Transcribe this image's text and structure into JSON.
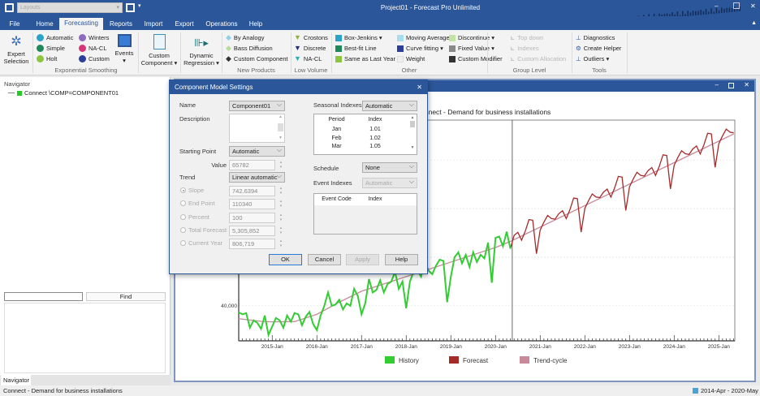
{
  "app": {
    "title": "Project01 - Forecast Pro Unlimited",
    "layouts_placeholder": "Layouts"
  },
  "tabs": [
    "File",
    "Home",
    "Forecasting",
    "Reports",
    "Import",
    "Export",
    "Operations",
    "Help"
  ],
  "active_tab": "Forecasting",
  "ribbon": {
    "expert": {
      "label1": "Expert",
      "label2": "Selection"
    },
    "exp_smoothing": {
      "label": "Exponential Smoothing",
      "items": [
        {
          "label": "Automatic",
          "color": "#2aa3c8"
        },
        {
          "label": "Simple",
          "color": "#1e8a5a"
        },
        {
          "label": "Holt",
          "color": "#8cc63f"
        },
        {
          "label": "Winters",
          "color": "#8e6bbf"
        },
        {
          "label": "NA-CL",
          "color": "#d6357a"
        },
        {
          "label": "Custom",
          "color": "#2b3f9a"
        }
      ]
    },
    "events": {
      "label": "Events"
    },
    "custom_component": {
      "label1": "Custom",
      "label2": "Component ▾"
    },
    "dynamic_regression": {
      "label1": "Dynamic",
      "label2": "Regression ▾"
    },
    "new_products": {
      "label": "New Products",
      "items": [
        {
          "label": "By Analogy",
          "color": "#8fd0e8"
        },
        {
          "label": "Bass Diffusion",
          "color": "#b7dc9a"
        },
        {
          "label": "Custom Component",
          "color": "#333333"
        }
      ]
    },
    "low_volume": {
      "label": "Low Volume",
      "items": [
        {
          "label": "Crostons",
          "color": "#8cb43c"
        },
        {
          "label": "Discrete",
          "color": "#23307e"
        },
        {
          "label": "NA-CL",
          "color": "#2ab0b0"
        }
      ]
    },
    "other": {
      "label": "Other",
      "items": [
        {
          "label": "Box-Jenkins ▾",
          "color": "#2aa3c8"
        },
        {
          "label": "Best-fit Line",
          "color": "#1e8a5a"
        },
        {
          "label": "Same as Last Year ▾",
          "color": "#8cc63f"
        },
        {
          "label": "Moving Average",
          "color": "#a8dcef"
        },
        {
          "label": "Curve fitting ▾",
          "color": "#2b3f9a"
        },
        {
          "label": "Weight",
          "color": "#f0f0f0"
        },
        {
          "label": "Discontinue ▾",
          "color": "#c6e3a6"
        },
        {
          "label": "Fixed Value ▾",
          "color": "#888888"
        },
        {
          "label": "Custom Modifier",
          "color": "#333333"
        }
      ]
    },
    "group_level": {
      "label": "Group Level",
      "items": [
        "Top down",
        "Indexes",
        "Custom Allocation"
      ]
    },
    "tools": {
      "label": "Tools",
      "items": [
        "Diagnostics",
        "Create Helper",
        "Outliers ▾"
      ]
    }
  },
  "navigator": {
    "title": "Navigator",
    "tree_item": "Connect \\COMP=COMPONENT01",
    "find_label": "Find",
    "find_value": "",
    "tab": "Navigator"
  },
  "status": {
    "left": "Connect - Demand for business installations",
    "right": "2014-Apr - 2020-May"
  },
  "chart_window": {
    "title": "Connect - Demand for business installations"
  },
  "dialog": {
    "title": "Component Model Settings",
    "name_label": "Name",
    "name_value": "Component01",
    "description_label": "Description",
    "description_value": "",
    "starting_point_label": "Starting Point",
    "starting_point_value": "Automatic",
    "value_label": "Value",
    "value": "65782",
    "trend_label": "Trend",
    "trend_value": "Linear automatic",
    "trend_options": [
      {
        "label": "Slope",
        "value": "742.6394",
        "selected": true
      },
      {
        "label": "End Point",
        "value": "110340",
        "selected": false
      },
      {
        "label": "Percent",
        "value": "100",
        "selected": false
      },
      {
        "label": "Total Forecast",
        "value": "5,305,852",
        "selected": false
      },
      {
        "label": "Current Year",
        "value": "806,719",
        "selected": false
      }
    ],
    "seasonal_label": "Seasonal Indexes",
    "seasonal_value": "Automatic",
    "seasonal_table": {
      "headers": [
        "Period",
        "Index"
      ],
      "rows": [
        [
          "Jan",
          "1.01"
        ],
        [
          "Feb",
          "1.02"
        ],
        [
          "Mar",
          "1.05"
        ]
      ]
    },
    "schedule_label": "Schedule",
    "schedule_value": "None",
    "event_indexes_label": "Event Indexes",
    "event_indexes_value": "Automatic",
    "event_table": {
      "headers": [
        "Event Code",
        "Index"
      ],
      "rows": []
    },
    "buttons": {
      "ok": "OK",
      "cancel": "Cancel",
      "apply": "Apply",
      "help": "Help"
    }
  },
  "chart_data": {
    "type": "line",
    "title": "Connect - Demand for business installations",
    "x_start": "2014-Apr",
    "x_end": "2025-May",
    "x_ticks": [
      "2015-Jan",
      "2016-Jan",
      "2017-Jan",
      "2018-Jan",
      "2019-Jan",
      "2020-Jan",
      "2021-Jan",
      "2022-Jan",
      "2023-Jan",
      "2024-Jan",
      "2025-Jan"
    ],
    "y_ticks": [
      {
        "value": 40000,
        "label": "40,000"
      }
    ],
    "y_gridlines": [
      40000,
      60000,
      80000,
      100000
    ],
    "ylim": [
      25600,
      116400
    ],
    "grid": true,
    "legend_placement": "bottom",
    "series": [
      {
        "name": "History",
        "color": "#33cc33",
        "start": "2014-Apr",
        "values": [
          37300,
          36500,
          37000,
          31000,
          34000,
          33000,
          30500,
          36000,
          28000,
          31500,
          35000,
          34000,
          31000,
          36000,
          33500,
          37000,
          36500,
          32000,
          35500,
          37500,
          32500,
          30000,
          36000,
          40000,
          45500,
          40000,
          40500,
          42500,
          38500,
          41000,
          40000,
          47000,
          44000,
          36500,
          41000,
          51000,
          45500,
          46500,
          50500,
          45500,
          49000,
          50000,
          54000,
          47000,
          50000,
          39000,
          50000,
          54000,
          54500,
          52000,
          58000,
          54500,
          53000,
          56500,
          59000,
          58500,
          41500,
          52000,
          60000,
          62000,
          57500,
          61000,
          56000,
          62000,
          58000,
          61000,
          59500,
          66000,
          49500,
          68000,
          68500,
          64500,
          70500,
          63500
        ]
      },
      {
        "name": "Forecast",
        "color": "#a52a2a",
        "start": "2020-Jun",
        "values": [
          69000,
          70240,
          66980,
          70720,
          75460,
          75200,
          61440,
          71180,
          74420,
          77160,
          75900,
          75640,
          77880,
          79120,
          75860,
          79600,
          84340,
          84080,
          70320,
          80060,
          83300,
          86040,
          84780,
          84520,
          86760,
          88000,
          84740,
          88480,
          93220,
          92960,
          79200,
          88940,
          92180,
          94920,
          93660,
          93400,
          95640,
          96880,
          93620,
          97360,
          102100,
          101840,
          88080,
          97820,
          101060,
          103800,
          102540,
          102280,
          104520,
          105760,
          102500,
          106240,
          110980,
          110720,
          96960,
          106700,
          109940,
          112680,
          111420,
          111160
        ]
      },
      {
        "name": "Trend-cycle",
        "color": "#c88a9a",
        "points": [
          [
            "2014-Apr",
            34700
          ],
          [
            "2014-Oct",
            33600
          ],
          [
            "2015-Jan",
            33400
          ],
          [
            "2015-Jul",
            33500
          ],
          [
            "2016-Jan",
            36500
          ],
          [
            "2016-Jul",
            41500
          ],
          [
            "2017-Jan",
            46000
          ],
          [
            "2018-Jan",
            52000
          ],
          [
            "2019-Jan",
            58000
          ],
          [
            "2020-Jan",
            64000
          ],
          [
            "2020-May",
            66500
          ],
          [
            "2025-May",
            110700
          ]
        ]
      }
    ]
  }
}
